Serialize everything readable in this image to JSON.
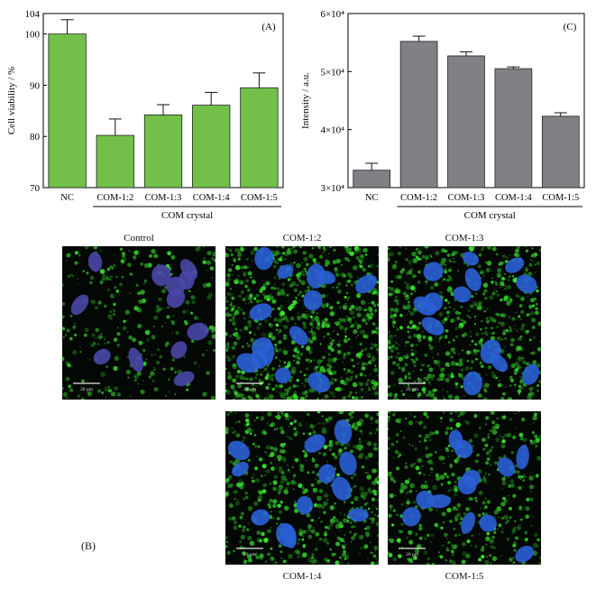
{
  "chart_data": [
    {
      "type": "bar",
      "panel_label": "(A)",
      "categories": [
        "NC",
        "COM-1:2",
        "COM-1:3",
        "COM-1:4",
        "COM-1:5"
      ],
      "values": [
        100.0,
        80.2,
        84.2,
        86.1,
        89.5
      ],
      "errors": [
        2.8,
        3.2,
        2.0,
        2.5,
        2.9
      ],
      "ylabel": "Cell viability / %",
      "ylim": [
        70,
        104
      ],
      "yticks": [
        "70",
        "80",
        "90",
        "100",
        "104"
      ],
      "ytick_values": [
        70,
        80,
        90,
        100,
        104
      ],
      "group_label": "COM crystal",
      "bar_color": "#72c049"
    },
    {
      "type": "bar",
      "panel_label": "(C)",
      "categories": [
        "NC",
        "COM-1:2",
        "COM-1:3",
        "COM-1:4",
        "COM-1:5"
      ],
      "values": [
        33000,
        55200,
        52700,
        50500,
        42300
      ],
      "errors": [
        1200,
        900,
        700,
        300,
        600
      ],
      "ylabel": "Intensity / a.u.",
      "ylim": [
        30000,
        60000
      ],
      "yticks": [
        "3×10⁴",
        "4×10⁴",
        "5×10⁴",
        "6×10⁴"
      ],
      "ytick_values": [
        30000,
        40000,
        50000,
        60000
      ],
      "group_label": "COM crystal",
      "bar_color": "#808085"
    }
  ],
  "micrographs": {
    "panel_label": "(B)",
    "scale_bar_text": "20 μm",
    "items": [
      {
        "caption": "Control",
        "green_density": 0.35,
        "nucleus_color": "#4a47a8"
      },
      {
        "caption": "COM-1:2",
        "green_density": 1.0,
        "nucleus_color": "#2a5fd6"
      },
      {
        "caption": "COM-1:3",
        "green_density": 0.85,
        "nucleus_color": "#2a5fd6"
      },
      {
        "caption": "COM-1:4",
        "green_density": 0.7,
        "nucleus_color": "#2a5fd6"
      },
      {
        "caption": "COM-1:5",
        "green_density": 0.55,
        "nucleus_color": "#2a5fd6"
      }
    ]
  }
}
